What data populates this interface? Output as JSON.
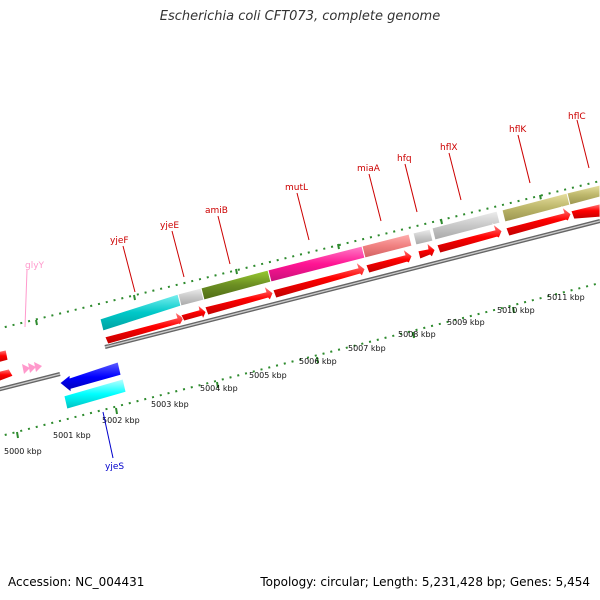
{
  "title": "Escherichia coli CFT073, complete genome",
  "footer": {
    "accession": "Accession: NC_004431",
    "topology": "Topology: circular; Length: 5,231,428 bp; Genes: 5,454"
  },
  "axis_labels": [
    "5000 kbp",
    "5001 kbp",
    "5002 kbp",
    "5003 kbp",
    "5004 kbp",
    "5005 kbp",
    "5006 kbp",
    "5007 kbp",
    "5008 kbp",
    "5009 kbp",
    "5010 kbp",
    "5011 kbp"
  ],
  "gene_labels": {
    "glyY": "glyY",
    "yjeF": "yjeF",
    "yjeE": "yjeE",
    "amiB": "amiB",
    "mutL": "mutL",
    "miaA": "miaA",
    "hfq": "hfq",
    "hflX": "hflX",
    "hflK": "hflK",
    "hflC": "hflC",
    "yjeS": "yjeS"
  },
  "colors": {
    "backbone": "#888888",
    "tick": "#2e8b2e",
    "cds": "#ff0000",
    "label_red": "#cc0000",
    "label_blue": "#0000cc",
    "label_pink": "#ff99cc"
  }
}
